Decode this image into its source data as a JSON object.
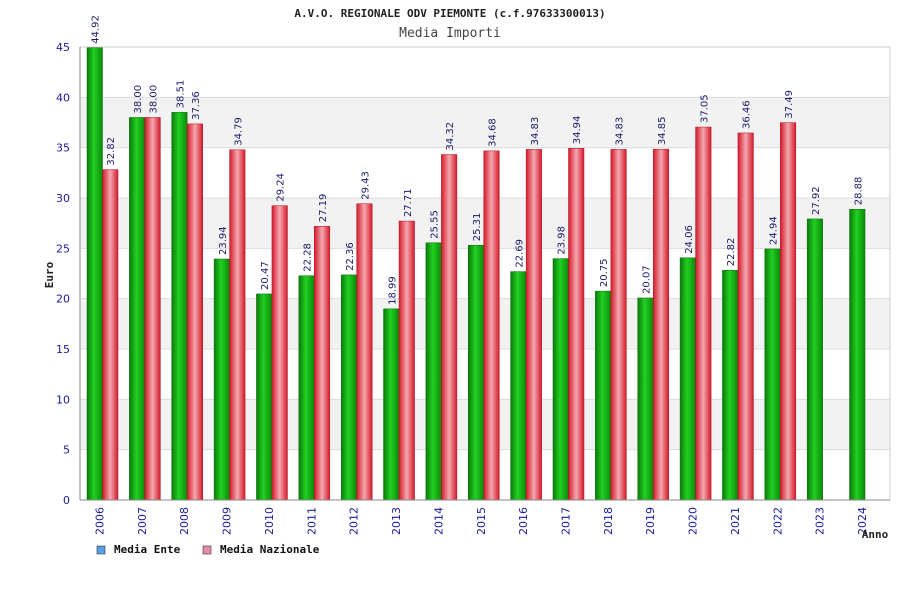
{
  "chart_data": {
    "type": "bar",
    "title": "A.V.O. REGIONALE ODV PIEMONTE (c.f.97633300013)",
    "subtitle": "Media Importi",
    "xlabel": "Anno",
    "ylabel": "Euro",
    "ylim": [
      0,
      45
    ],
    "yticks": [
      "0",
      "5",
      "10",
      "15",
      "20",
      "25",
      "30",
      "35",
      "40",
      "45"
    ],
    "categories": [
      "2006",
      "2007",
      "2008",
      "2009",
      "2010",
      "2011",
      "2012",
      "2013",
      "2014",
      "2015",
      "2016",
      "2017",
      "2018",
      "2019",
      "2020",
      "2021",
      "2022",
      "2023",
      "2024"
    ],
    "series": [
      {
        "name": "Media Ente",
        "legend_color": "#5aa0e6",
        "values": [
          44.92,
          38.0,
          38.51,
          23.94,
          20.47,
          22.28,
          22.36,
          18.99,
          25.55,
          25.31,
          22.69,
          23.98,
          20.75,
          20.07,
          24.06,
          22.82,
          24.94,
          27.92,
          28.88
        ],
        "labels": [
          "44.92",
          "38.00",
          "38.51",
          "23.94",
          "20.47",
          "22.28",
          "22.36",
          "18.99",
          "25.55",
          "25.31",
          "22.69",
          "23.98",
          "20.75",
          "20.07",
          "24.06",
          "22.82",
          "24.94",
          "27.92",
          "28.88"
        ]
      },
      {
        "name": "Media Nazionale",
        "legend_color": "#e58aa8",
        "values": [
          32.82,
          38.0,
          37.36,
          34.79,
          29.24,
          27.19,
          29.43,
          27.71,
          34.32,
          34.68,
          34.83,
          34.94,
          34.83,
          34.85,
          37.05,
          36.46,
          37.49,
          null,
          null
        ],
        "labels": [
          "32.82",
          "38.00",
          "37.36",
          "34.79",
          "29.24",
          "27.19",
          "29.43",
          "27.71",
          "34.32",
          "34.68",
          "34.83",
          "34.94",
          "34.83",
          "34.85",
          "37.05",
          "36.46",
          "37.49",
          null,
          null
        ]
      }
    ],
    "grid": true,
    "legend": "bottom-left"
  }
}
